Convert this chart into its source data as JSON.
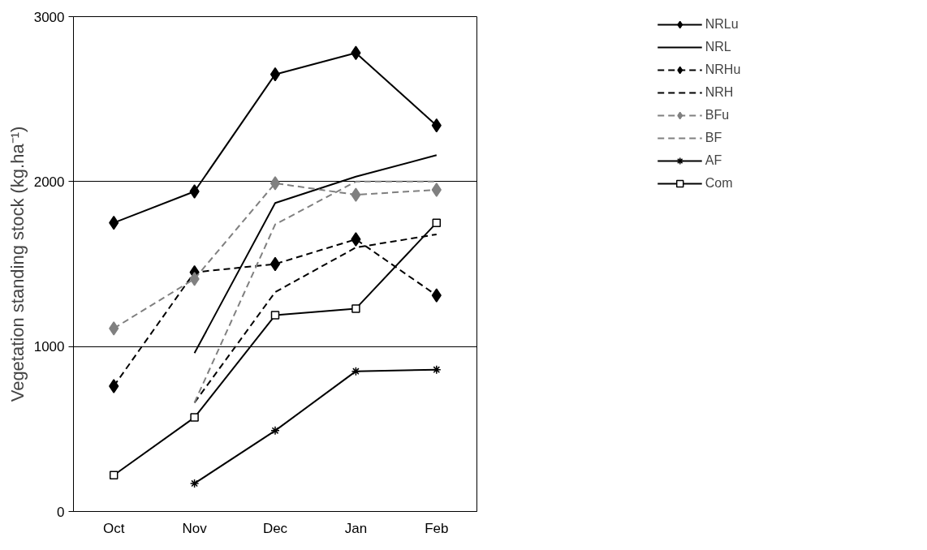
{
  "chart_data": {
    "type": "line",
    "ylabel": "Vegetation standing stock (kg.ha⁻¹)",
    "categories": [
      "Oct",
      "Nov",
      "Dec",
      "Jan",
      "Feb"
    ],
    "ylim": [
      0,
      3000
    ],
    "yticks": [
      0,
      1000,
      2000,
      3000
    ],
    "grid": "y",
    "legend": "right",
    "series": [
      {
        "name": "NRLu",
        "color": "#000000",
        "marker": "diamond",
        "line_style": "solid",
        "values": [
          1750,
          1940,
          2650,
          2780,
          2340
        ]
      },
      {
        "name": "NRL",
        "color": "#000000",
        "marker": "none",
        "line_style": "solid",
        "values": [
          null,
          960,
          1870,
          2030,
          2160
        ]
      },
      {
        "name": "NRHu",
        "color": "#000000",
        "marker": "diamond",
        "line_style": "dashed",
        "values": [
          760,
          1450,
          1500,
          1650,
          1310
        ]
      },
      {
        "name": "NRH",
        "color": "#000000",
        "marker": "none",
        "line_style": "dashed",
        "values": [
          null,
          660,
          1330,
          1600,
          1680
        ]
      },
      {
        "name": "BFu",
        "color": "#808080",
        "marker": "diamond",
        "line_style": "dashed",
        "values": [
          1110,
          1410,
          1990,
          1920,
          1950
        ]
      },
      {
        "name": "BF",
        "color": "#808080",
        "marker": "none",
        "line_style": "dashed",
        "values": [
          null,
          660,
          1740,
          2000,
          2000
        ]
      },
      {
        "name": "AF",
        "color": "#000000",
        "marker": "cross",
        "line_style": "solid",
        "values": [
          null,
          170,
          490,
          850,
          860
        ]
      },
      {
        "name": "Com",
        "color": "#000000",
        "marker": "square",
        "line_style": "solid",
        "values": [
          220,
          570,
          1190,
          1230,
          1750
        ]
      }
    ]
  }
}
